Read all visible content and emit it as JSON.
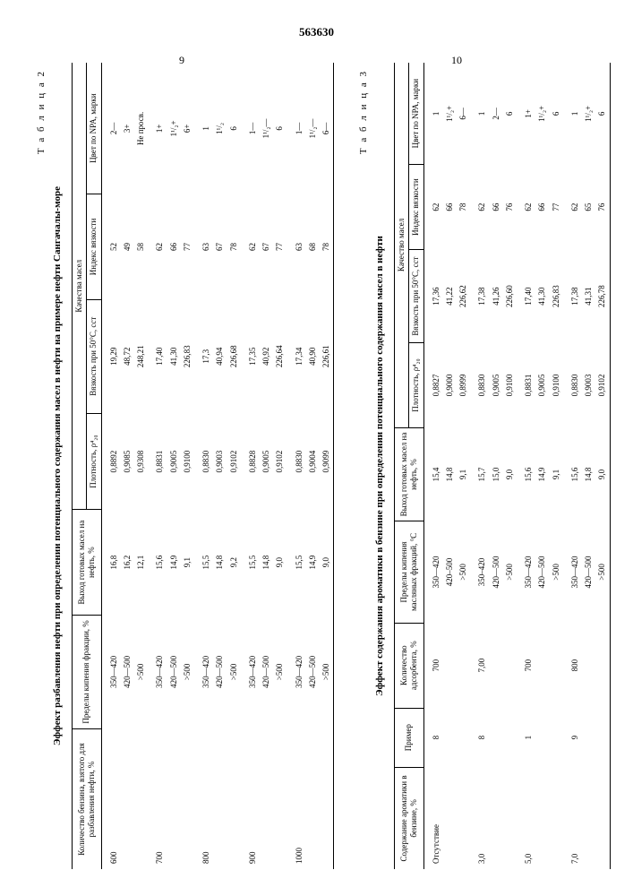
{
  "doc_number": "563630",
  "page_left": "9",
  "page_right": "10",
  "table2": {
    "label": "Т а б л и ц а  2",
    "caption": "Эффект разбавления нефти при определении потенциального содержания масел в нефти на примере нефти Сангачалы-море",
    "head": {
      "c1": "Количество бензина, взятого для разбавления нефти, %",
      "c2": "Пределы кипения фракции, %",
      "c3": "Выход готовых масел на нефть, %",
      "g1": "Качества масел",
      "c4": "Плотность, ρ⁴₂₀",
      "c5": "Вязкость при 50°C, сст",
      "c6": "Индекс вязкости",
      "c7": "Цвет по NPA, марки"
    },
    "rows": [
      {
        "a": "600",
        "b": "350—420",
        "c": "16,8",
        "d": "0,8892",
        "e": "19,29",
        "f": "52",
        "g": "2—"
      },
      {
        "a": "",
        "b": "420—500",
        "c": "16,2",
        "d": "0,9085",
        "e": "48,72",
        "f": "49",
        "g": "3+"
      },
      {
        "a": "",
        "b": ">500",
        "c": "12,1",
        "d": "0,9308",
        "e": "248,21",
        "f": "58",
        "g": "Не просв."
      },
      {
        "a": "700",
        "b": "350—420",
        "c": "15,6",
        "d": "0,8831",
        "e": "17,40",
        "f": "62",
        "g": "1+"
      },
      {
        "a": "",
        "b": "420—500",
        "c": "14,9",
        "d": "0,9005",
        "e": "41,30",
        "f": "66",
        "g": "1¹/₂+"
      },
      {
        "a": "",
        "b": ">500",
        "c": "9,1",
        "d": "0,9100",
        "e": "226,83",
        "f": "77",
        "g": "6+"
      },
      {
        "a": "800",
        "b": "350—420",
        "c": "15,5",
        "d": "0,8830",
        "e": "17,3",
        "f": "63",
        "g": "1"
      },
      {
        "a": "",
        "b": "420—500",
        "c": "14,8",
        "d": "0,9003",
        "e": "40,94",
        "f": "67",
        "g": "1¹/₂"
      },
      {
        "a": "",
        "b": ">500",
        "c": "9,2",
        "d": "0,9102",
        "e": "226,68",
        "f": "78",
        "g": "6"
      },
      {
        "a": "900",
        "b": "350—420",
        "c": "15,5",
        "d": "0,8828",
        "e": "17,35",
        "f": "62",
        "g": "1—"
      },
      {
        "a": "",
        "b": "420—500",
        "c": "14,8",
        "d": "0,9005",
        "e": "40,92",
        "f": "67",
        "g": "1¹/₂—"
      },
      {
        "a": "",
        "b": ">500",
        "c": "9,0",
        "d": "0,9102",
        "e": "226,64",
        "f": "77",
        "g": "6"
      },
      {
        "a": "1000",
        "b": "350—420",
        "c": "15,5",
        "d": "0,8830",
        "e": "17,34",
        "f": "63",
        "g": "1—"
      },
      {
        "a": "",
        "b": "420—500",
        "c": "14,9",
        "d": "0,9004",
        "e": "40,90",
        "f": "68",
        "g": "1¹/₂—"
      },
      {
        "a": "",
        "b": ">500",
        "c": "9,0",
        "d": "0,9099",
        "e": "226,61",
        "f": "78",
        "g": "6—"
      }
    ]
  },
  "table3": {
    "label": "Т а б л и ц а  3",
    "caption": "Эффект содержания ароматики в бензине при определении потенциального содержания масел в нефти",
    "head": {
      "c1": "Содержание ароматики в бензине, %",
      "c2": "Пример",
      "c3": "Количество адсорбента, %",
      "c4": "Пределы кипения масляных фракций, °C",
      "c5": "Выход готовых масел на нефть, %",
      "g1": "Качество масел",
      "c6": "Плотность, ρ⁴₂₀",
      "c7": "Вязкость при 50°C, сст",
      "c8": "Индекс вязкости",
      "c9": "Цвет по NPA, марки"
    },
    "rows": [
      {
        "a": "Отсутствие",
        "p": "8",
        "q": "700",
        "b": "350—420",
        "c": "15,4",
        "d": "0,8827",
        "e": "17,36",
        "f": "62",
        "g": "1"
      },
      {
        "a": "",
        "p": "",
        "q": "",
        "b": "420–500",
        "c": "14,8",
        "d": "0,9000",
        "e": "41,22",
        "f": "66",
        "g": "1¹/₂+"
      },
      {
        "a": "",
        "p": "",
        "q": "",
        "b": ">500",
        "c": "9,1",
        "d": "0,8999",
        "e": "226,62",
        "f": "78",
        "g": "6—"
      },
      {
        "a": "3,0",
        "p": "8",
        "q": "7,00",
        "b": "350–420",
        "c": "15,7",
        "d": "0,8830",
        "e": "17,38",
        "f": "62",
        "g": "1"
      },
      {
        "a": "",
        "p": "",
        "q": "",
        "b": "420—500",
        "c": "15,0",
        "d": "0,9005",
        "e": "41,26",
        "f": "66",
        "g": "2—"
      },
      {
        "a": "",
        "p": "",
        "q": "",
        "b": ">500",
        "c": "9,0",
        "d": "0,9100",
        "e": "226,60",
        "f": "76",
        "g": "6"
      },
      {
        "a": "5,0",
        "p": "1",
        "q": "700",
        "b": "350—420",
        "c": "15,6",
        "d": "0,8831",
        "e": "17,40",
        "f": "62",
        "g": "1+"
      },
      {
        "a": "",
        "p": "",
        "q": "",
        "b": "420—500",
        "c": "14,9",
        "d": "0,9005",
        "e": "41,30",
        "f": "66",
        "g": "1¹/₂+"
      },
      {
        "a": "",
        "p": "",
        "q": "",
        "b": ">500",
        "c": "9,1",
        "d": "0,9100",
        "e": "226,83",
        "f": "77",
        "g": "6"
      },
      {
        "a": "7,0",
        "p": "9",
        "q": "800",
        "b": "350—420",
        "c": "15,6",
        "d": "0,8830",
        "e": "17,38",
        "f": "62",
        "g": "1"
      },
      {
        "a": "",
        "p": "",
        "q": "",
        "b": "420—500",
        "c": "14,8",
        "d": "0,9003",
        "e": "41,31",
        "f": "65",
        "g": "1¹/₂+"
      },
      {
        "a": "",
        "p": "",
        "q": "",
        "b": ">500",
        "c": "9,0",
        "d": "0,9102",
        "e": "226,78",
        "f": "76",
        "g": "6"
      }
    ]
  }
}
